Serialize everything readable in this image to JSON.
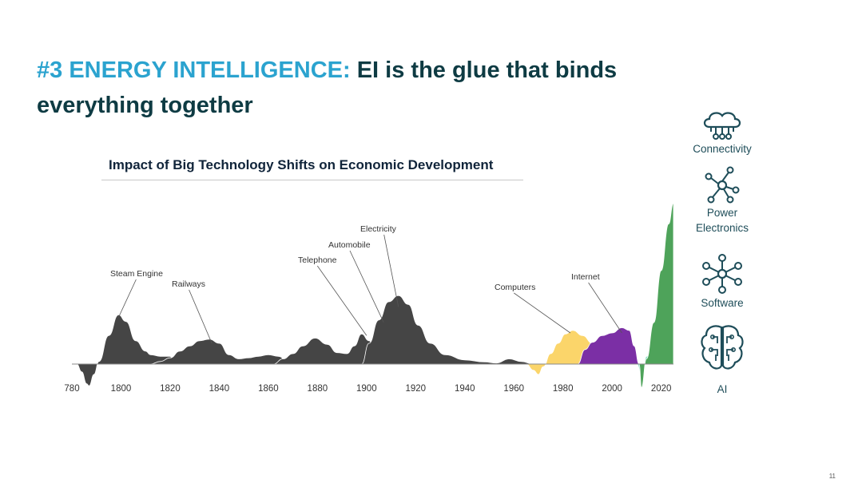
{
  "slide": {
    "title_accent": "#3 ENERGY INTELLIGENCE:",
    "title_rest": " EI is the glue that binds everything together",
    "page_number": "11"
  },
  "side_icons": [
    {
      "icon": "cloud-network-icon",
      "label": "Connectivity"
    },
    {
      "icon": "power-electronics-node-icon",
      "label": "Power Electronics"
    },
    {
      "icon": "software-network-icon",
      "label": "Software"
    },
    {
      "icon": "brain-circuit-icon",
      "label": "AI"
    }
  ],
  "colors": {
    "title_accent": "#2ba3cf",
    "title_dark": "#0e3b43",
    "area_dark": "#454545",
    "computers": "#fbd56a",
    "internet": "#7b2fa5",
    "green": "#4ea35a",
    "beige": "#f2d8a6",
    "red": "#de5a3d",
    "blue": "#3a69a8",
    "mint": "#8ee3c6",
    "ai_green": "#3f8d46"
  },
  "chart_data": {
    "type": "area",
    "title": "Impact of Big Technology Shifts on Economic Development",
    "xlabel": "",
    "ylabel": "",
    "x_ticks": [
      "780",
      "1800",
      "1820",
      "1840",
      "1860",
      "1880",
      "1900",
      "1920",
      "1940",
      "1960",
      "1980",
      "2000",
      "2020"
    ],
    "xlim": [
      1780,
      2025
    ],
    "ylim": [
      -0.45,
      3.2
    ],
    "grid": false,
    "annotations": [
      {
        "label": "Steam Engine",
        "year": 1799,
        "value": 0.9
      },
      {
        "label": "Railways",
        "year": 1837,
        "value": 0.4
      },
      {
        "label": "Telephone",
        "year": 1900,
        "value": 0.55
      },
      {
        "label": "Automobile",
        "year": 1907,
        "value": 0.8
      },
      {
        "label": "Electricity",
        "year": 1913,
        "value": 1.1
      },
      {
        "label": "Computers",
        "year": 1983,
        "value": 0.6
      },
      {
        "label": "Internet",
        "year": 2004,
        "value": 0.6
      }
    ],
    "series": [
      {
        "name": "Steam Engine",
        "color": "#454545",
        "points": [
          [
            1780,
            0
          ],
          [
            1782,
            0
          ],
          [
            1784,
            -0.15
          ],
          [
            1786,
            -0.38
          ],
          [
            1787,
            -0.42
          ],
          [
            1789,
            -0.2
          ],
          [
            1791,
            0.05
          ],
          [
            1795,
            0.55
          ],
          [
            1799,
            0.95
          ],
          [
            1802,
            0.82
          ],
          [
            1806,
            0.45
          ],
          [
            1810,
            0.25
          ],
          [
            1812,
            0.18
          ],
          [
            1816,
            0.15
          ],
          [
            1820,
            0.15
          ],
          [
            1822,
            0
          ],
          [
            1824,
            0
          ]
        ]
      },
      {
        "name": "Railways",
        "color": "#454545",
        "points": [
          [
            1812,
            0
          ],
          [
            1816,
            0.05
          ],
          [
            1820,
            0.12
          ],
          [
            1824,
            0.25
          ],
          [
            1828,
            0.35
          ],
          [
            1832,
            0.45
          ],
          [
            1836,
            0.48
          ],
          [
            1840,
            0.4
          ],
          [
            1844,
            0.18
          ],
          [
            1848,
            0.1
          ],
          [
            1852,
            0.12
          ],
          [
            1856,
            0.15
          ],
          [
            1860,
            0.18
          ],
          [
            1864,
            0.15
          ],
          [
            1868,
            0.05
          ],
          [
            1872,
            0
          ]
        ]
      },
      {
        "name": "Telephone",
        "color": "#454545",
        "points": [
          [
            1862,
            0
          ],
          [
            1866,
            0.1
          ],
          [
            1870,
            0.2
          ],
          [
            1874,
            0.35
          ],
          [
            1879,
            0.5
          ],
          [
            1884,
            0.38
          ],
          [
            1888,
            0.22
          ],
          [
            1892,
            0.2
          ],
          [
            1895,
            0.35
          ],
          [
            1898,
            0.58
          ],
          [
            1901,
            0.45
          ],
          [
            1904,
            0.2
          ],
          [
            1906,
            0
          ]
        ]
      },
      {
        "name": "Electricity",
        "color": "#454545",
        "points": [
          [
            1898,
            0
          ],
          [
            1901,
            0.4
          ],
          [
            1905,
            0.85
          ],
          [
            1909,
            1.2
          ],
          [
            1913,
            1.32
          ],
          [
            1917,
            1.15
          ],
          [
            1921,
            0.75
          ],
          [
            1926,
            0.4
          ],
          [
            1932,
            0.18
          ],
          [
            1940,
            0.08
          ],
          [
            1948,
            0.04
          ],
          [
            1953,
            0.02
          ],
          [
            1958,
            0.1
          ],
          [
            1963,
            0.05
          ],
          [
            1968,
            0
          ]
        ]
      },
      {
        "name": "Computers",
        "color": "#fbd56a",
        "points": [
          [
            1965,
            0
          ],
          [
            1968,
            -0.12
          ],
          [
            1970,
            -0.2
          ],
          [
            1972,
            -0.05
          ],
          [
            1975,
            0.2
          ],
          [
            1978,
            0.4
          ],
          [
            1981,
            0.58
          ],
          [
            1984,
            0.65
          ],
          [
            1988,
            0.55
          ],
          [
            1992,
            0.4
          ],
          [
            1996,
            0.2
          ],
          [
            2000,
            0.05
          ],
          [
            2004,
            0
          ]
        ]
      },
      {
        "name": "Internet",
        "color": "#7b2fa5",
        "points": [
          [
            1986,
            0
          ],
          [
            1989,
            0.28
          ],
          [
            1992,
            0.42
          ],
          [
            1996,
            0.55
          ],
          [
            2000,
            0.6
          ],
          [
            2004,
            0.7
          ],
          [
            2007,
            0.65
          ],
          [
            2009,
            0.35
          ],
          [
            2011,
            0
          ]
        ]
      },
      {
        "name": "",
        "color": "#8ee3c6",
        "points": [
          [
            2010,
            0
          ],
          [
            2012,
            -0.2
          ],
          [
            2014,
            0.15
          ],
          [
            2017,
            0.5
          ],
          [
            2020,
            0.9
          ],
          [
            2023,
            1.1
          ],
          [
            2025,
            1.2
          ]
        ]
      },
      {
        "name": "",
        "color": "#3a69a8",
        "points": [
          [
            2014,
            0
          ],
          [
            2016,
            0.3
          ],
          [
            2019,
            0.9
          ],
          [
            2022,
            1.5
          ],
          [
            2025,
            1.8
          ]
        ]
      },
      {
        "name": "",
        "color": "#de5a3d",
        "points": [
          [
            2016,
            0
          ],
          [
            2018,
            0.45
          ],
          [
            2021,
            1.2
          ],
          [
            2023,
            1.8
          ],
          [
            2025,
            2.15
          ]
        ]
      },
      {
        "name": "",
        "color": "#f2d8a6",
        "points": [
          [
            2017,
            0
          ],
          [
            2019,
            0.6
          ],
          [
            2021,
            1.5
          ],
          [
            2023,
            2.3
          ],
          [
            2025,
            2.6
          ]
        ]
      },
      {
        "name": "",
        "color": "#4ea35a",
        "points": [
          [
            2011,
            0
          ],
          [
            2012,
            -0.45
          ],
          [
            2014,
            0.1
          ],
          [
            2017,
            0.8
          ],
          [
            2020,
            1.8
          ],
          [
            2023,
            2.7
          ],
          [
            2025,
            3.1
          ]
        ]
      }
    ]
  }
}
